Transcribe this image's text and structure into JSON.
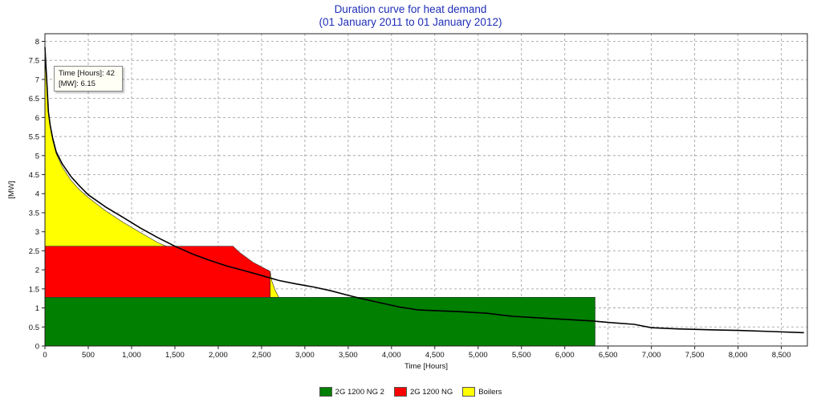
{
  "chart_data": {
    "type": "area",
    "title": "Duration curve for heat demand",
    "subtitle": "(01 January 2011  to  01 January 2012)",
    "xlabel": "Time [Hours]",
    "ylabel": "[MW]",
    "xlim": [
      0,
      8800
    ],
    "ylim": [
      0,
      8.2
    ],
    "x_ticks": [
      "0",
      "500",
      "1,000",
      "1,500",
      "2,000",
      "2,500",
      "3,000",
      "3,500",
      "4,000",
      "4,500",
      "5,000",
      "5,500",
      "6,000",
      "6,500",
      "7,000",
      "7,500",
      "8,000",
      "8,500"
    ],
    "x_tick_values": [
      0,
      500,
      1000,
      1500,
      2000,
      2500,
      3000,
      3500,
      4000,
      4500,
      5000,
      5500,
      6000,
      6500,
      7000,
      7500,
      8000,
      8500
    ],
    "y_ticks": [
      "0",
      "0.5",
      "1",
      "1.5",
      "2",
      "2.5",
      "3",
      "3.5",
      "4",
      "4.5",
      "5",
      "5.5",
      "6",
      "6.5",
      "7",
      "7.5",
      "8"
    ],
    "y_tick_values": [
      0,
      0.5,
      1,
      1.5,
      2,
      2.5,
      3,
      3.5,
      4,
      4.5,
      5,
      5.5,
      6,
      6.5,
      7,
      7.5,
      8
    ],
    "grid": true,
    "legend_position": "bottom",
    "series": [
      {
        "name": "2G 1200 NG 2",
        "color": "#007f00",
        "points": [
          [
            0,
            0
          ],
          [
            0,
            1.28
          ],
          [
            6350,
            1.28
          ],
          [
            6350,
            0
          ]
        ]
      },
      {
        "name": "2G 1200 NG",
        "color": "#ff0000",
        "points": [
          [
            0,
            1.28
          ],
          [
            0,
            2.62
          ],
          [
            2170,
            2.62
          ],
          [
            2250,
            2.45
          ],
          [
            2400,
            2.2
          ],
          [
            2600,
            1.96
          ],
          [
            2600,
            1.28
          ]
        ]
      },
      {
        "name": "Boilers",
        "color": "#ffff00",
        "points": [
          [
            0,
            2.62
          ],
          [
            0,
            7.55
          ],
          [
            20,
            7.0
          ],
          [
            40,
            6.15
          ],
          [
            60,
            5.8
          ],
          [
            90,
            5.4
          ],
          [
            130,
            5.05
          ],
          [
            200,
            4.7
          ],
          [
            300,
            4.35
          ],
          [
            400,
            4.1
          ],
          [
            500,
            3.9
          ],
          [
            700,
            3.55
          ],
          [
            900,
            3.25
          ],
          [
            1100,
            2.98
          ],
          [
            1300,
            2.72
          ],
          [
            1400,
            2.62
          ]
        ]
      },
      {
        "name": "",
        "color": "#ffff00",
        "points": [
          [
            2600,
            1.96
          ],
          [
            2620,
            1.7
          ],
          [
            2660,
            1.45
          ],
          [
            2700,
            1.28
          ],
          [
            2600,
            1.28
          ]
        ]
      }
    ],
    "demand_curve": [
      [
        0,
        7.85
      ],
      [
        10,
        7.4
      ],
      [
        20,
        7.0
      ],
      [
        40,
        6.15
      ],
      [
        60,
        5.8
      ],
      [
        90,
        5.45
      ],
      [
        130,
        5.1
      ],
      [
        200,
        4.78
      ],
      [
        300,
        4.45
      ],
      [
        400,
        4.2
      ],
      [
        500,
        3.97
      ],
      [
        700,
        3.65
      ],
      [
        900,
        3.38
      ],
      [
        1100,
        3.1
      ],
      [
        1300,
        2.85
      ],
      [
        1500,
        2.62
      ],
      [
        1700,
        2.42
      ],
      [
        1900,
        2.25
      ],
      [
        2100,
        2.1
      ],
      [
        2300,
        1.98
      ],
      [
        2500,
        1.85
      ],
      [
        2700,
        1.72
      ],
      [
        2900,
        1.63
      ],
      [
        3100,
        1.55
      ],
      [
        3300,
        1.45
      ],
      [
        3500,
        1.33
      ],
      [
        3700,
        1.22
      ],
      [
        3900,
        1.12
      ],
      [
        4100,
        1.02
      ],
      [
        4300,
        0.95
      ],
      [
        4500,
        0.93
      ],
      [
        4800,
        0.9
      ],
      [
        5100,
        0.86
      ],
      [
        5400,
        0.78
      ],
      [
        5700,
        0.74
      ],
      [
        6000,
        0.7
      ],
      [
        6300,
        0.66
      ],
      [
        6500,
        0.62
      ],
      [
        6800,
        0.57
      ],
      [
        7000,
        0.48
      ],
      [
        7300,
        0.45
      ],
      [
        7600,
        0.43
      ],
      [
        8000,
        0.41
      ],
      [
        8400,
        0.38
      ],
      [
        8760,
        0.35
      ]
    ],
    "tooltip": {
      "line1": "Time [Hours]: 42",
      "line2": "[MW]: 6.15"
    }
  }
}
